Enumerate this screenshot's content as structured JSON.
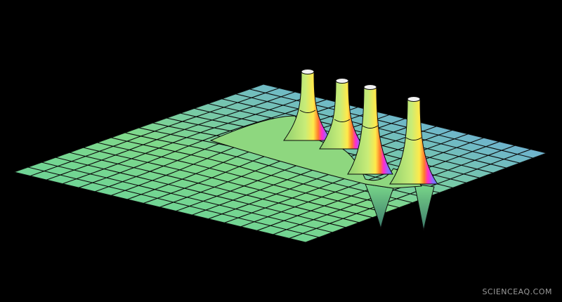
{
  "watermark": {
    "text": "SCIENCEAQ.COM"
  },
  "scene": {
    "background": "#000000",
    "grid_line_color": "#0a0a0a",
    "peak_count": 4,
    "palette": {
      "near": "#7fd98a",
      "mid": "#6fc8b2",
      "far": "#6f8ff0",
      "peak_top": "#a8e070",
      "rainbow": [
        "#ff2bd0",
        "#ff7a2b",
        "#ffe94a",
        "#6cf06a",
        "#44c8ff",
        "#6f6bff"
      ]
    }
  }
}
